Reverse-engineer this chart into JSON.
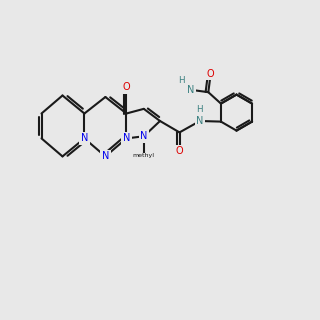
{
  "bg_color": "#e8e8e8",
  "bond_color": "#1a1a1a",
  "N_color": "#0000ee",
  "O_color": "#dd0000",
  "NH_color": "#3a8080",
  "lw": 1.5,
  "dlw": 1.3,
  "fs": 6.8
}
